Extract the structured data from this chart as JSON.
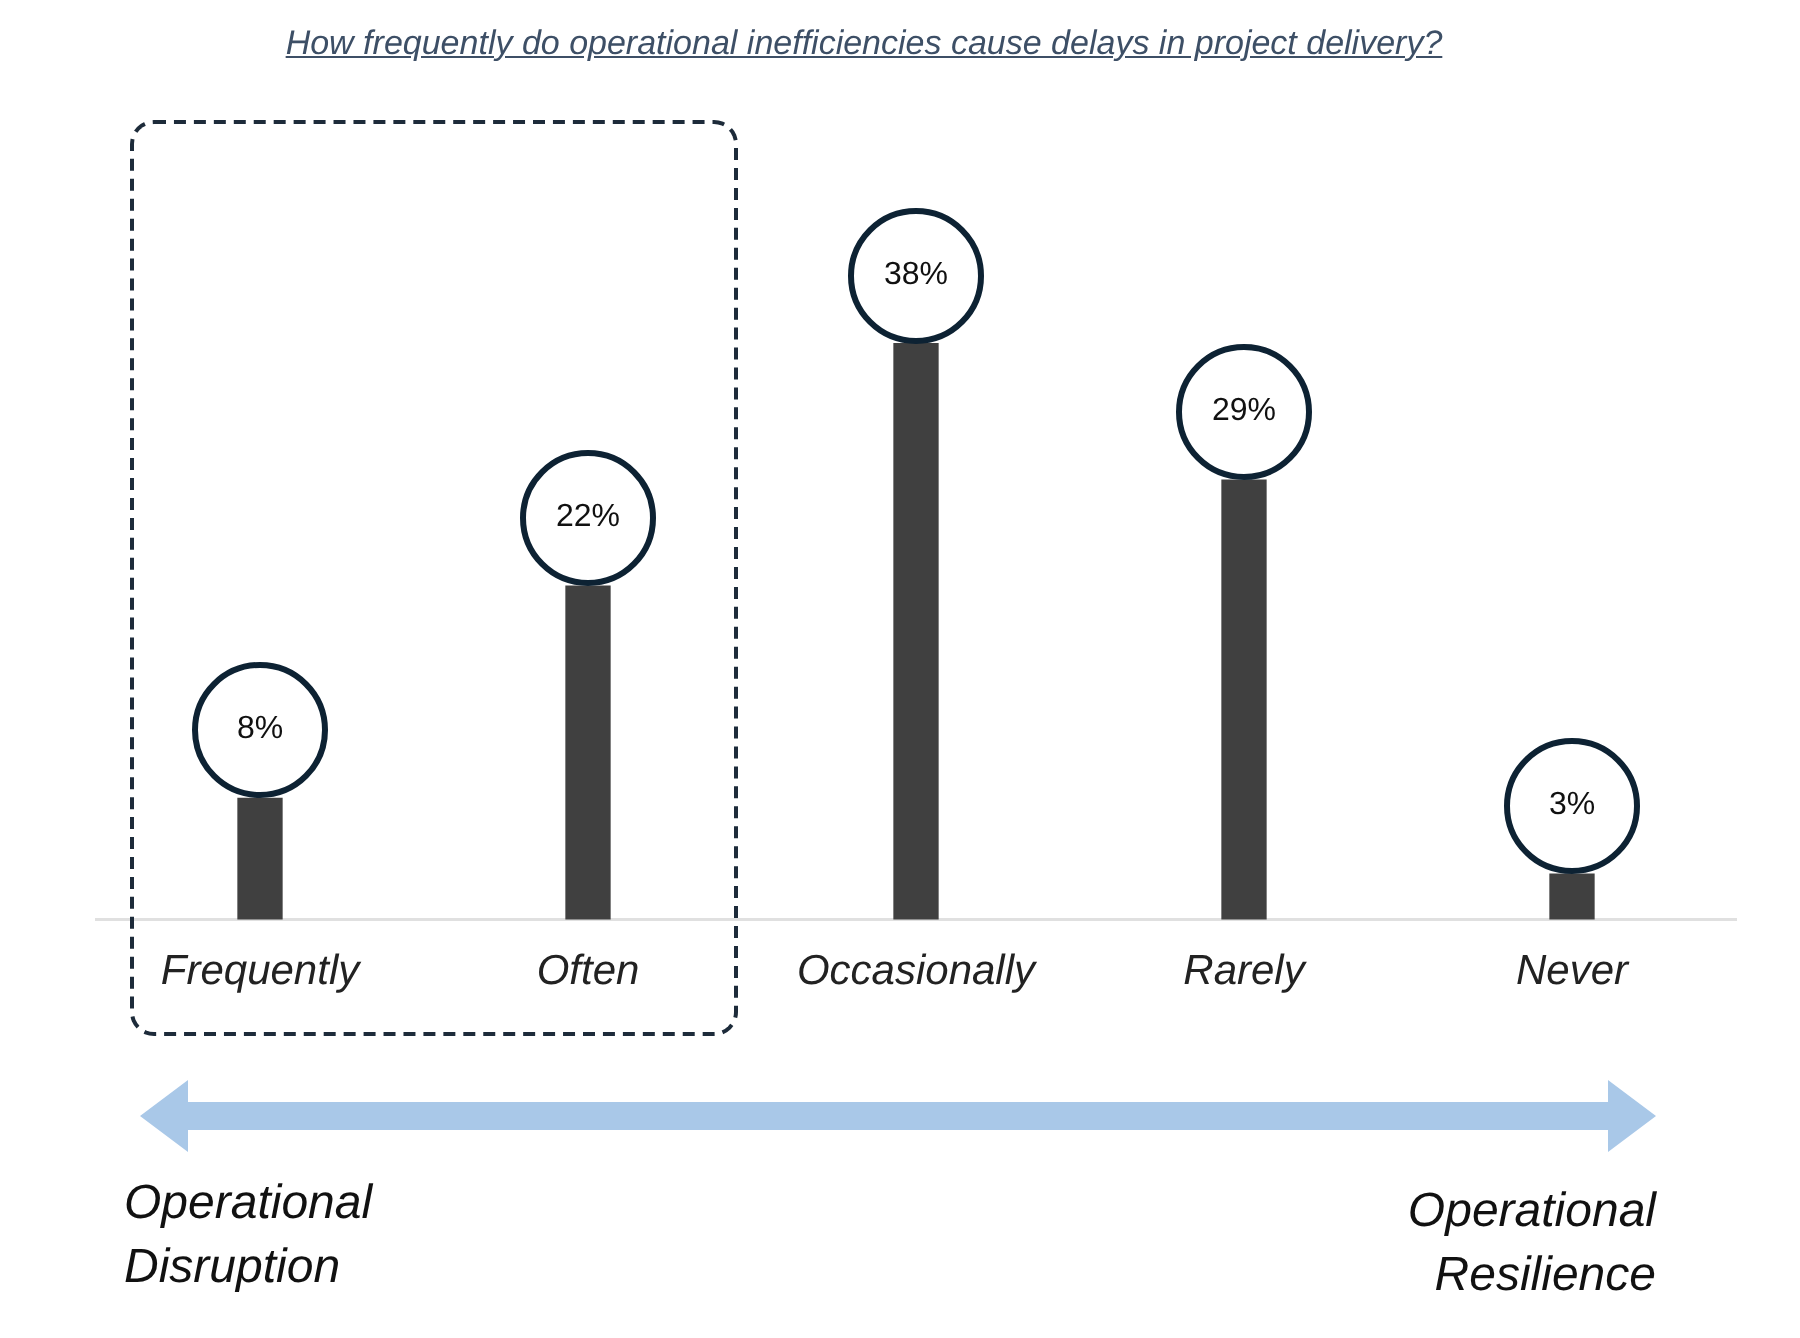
{
  "chart_data": {
    "type": "bar",
    "title": "How frequently do operational inefficiencies cause delays in project delivery?",
    "categories": [
      "Frequently",
      "Often",
      "Occasionally",
      "Rarely",
      "Never"
    ],
    "values": [
      8,
      22,
      38,
      29,
      3
    ],
    "value_labels": [
      "8%",
      "22%",
      "38%",
      "29%",
      "3%"
    ],
    "color": "#404040",
    "annotations": [
      "Operational Disruption",
      "Operational Resilience"
    ]
  }
}
